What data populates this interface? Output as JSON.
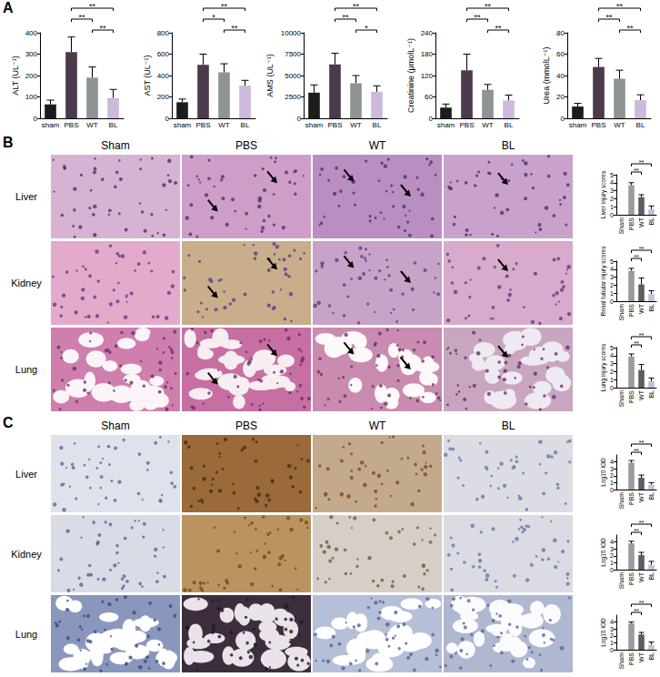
{
  "panel_labels": [
    "A",
    "B",
    "C"
  ],
  "image_panels": [
    {
      "columns": [
        "Sham",
        "PBS",
        "WT",
        "BL"
      ],
      "rows": [
        "Liver",
        "Kidney",
        "Lung"
      ]
    },
    {
      "columns": [
        "Sham",
        "PBS",
        "WT",
        "BL"
      ],
      "rows": [
        "Liver",
        "Kidney",
        "Lung"
      ]
    }
  ],
  "chart_data": [
    {
      "type": "bar",
      "ylabel": "ALT (UL⁻¹)",
      "categories": [
        "sham",
        "PBS",
        "WT",
        "BL"
      ],
      "values": [
        65,
        310,
        190,
        95
      ],
      "errors": [
        20,
        70,
        50,
        40
      ],
      "colors": [
        "#1c1c1c",
        "#4b3a4c",
        "#8e9494",
        "#cdb9dc"
      ],
      "ylim": [
        0,
        400
      ],
      "yticks": [
        0,
        100,
        200,
        300,
        400
      ],
      "grid": false,
      "significance": [
        {
          "from": "PBS",
          "to": "BL",
          "label": "**"
        },
        {
          "from": "PBS",
          "to": "WT",
          "label": "**"
        },
        {
          "from": "WT",
          "to": "BL",
          "label": "**"
        }
      ]
    },
    {
      "type": "bar",
      "ylabel": "AST (UL⁻¹)",
      "categories": [
        "sham",
        "PBS",
        "WT",
        "BL"
      ],
      "values": [
        150,
        500,
        430,
        305
      ],
      "errors": [
        30,
        100,
        80,
        50
      ],
      "colors": [
        "#1c1c1c",
        "#4b3a4c",
        "#8e9494",
        "#cdb9dc"
      ],
      "ylim": [
        0,
        800
      ],
      "yticks": [
        0,
        200,
        400,
        600,
        800
      ],
      "grid": false,
      "significance": [
        {
          "from": "PBS",
          "to": "BL",
          "label": "**"
        },
        {
          "from": "PBS",
          "to": "WT",
          "label": "*"
        },
        {
          "from": "WT",
          "to": "BL",
          "label": "**"
        }
      ]
    },
    {
      "type": "bar",
      "ylabel": "AMS (UL⁻¹)",
      "categories": [
        "sham",
        "PBS",
        "WT",
        "BL"
      ],
      "values": [
        3000,
        6300,
        4100,
        3100
      ],
      "errors": [
        900,
        1300,
        900,
        700
      ],
      "colors": [
        "#1c1c1c",
        "#4b3a4c",
        "#8e9494",
        "#cdb9dc"
      ],
      "ylim": [
        0,
        10000
      ],
      "yticks": [
        0,
        2500,
        5000,
        7500,
        10000
      ],
      "grid": false,
      "significance": [
        {
          "from": "PBS",
          "to": "BL",
          "label": "**"
        },
        {
          "from": "PBS",
          "to": "WT",
          "label": "**"
        },
        {
          "from": "WT",
          "to": "BL",
          "label": "*"
        }
      ]
    },
    {
      "type": "bar",
      "ylabel": "Creatinine (μmolL⁻¹)",
      "categories": [
        "sham",
        "PBS",
        "WT",
        "BL"
      ],
      "values": [
        30,
        135,
        80,
        50
      ],
      "errors": [
        10,
        45,
        15,
        15
      ],
      "colors": [
        "#1c1c1c",
        "#4b3a4c",
        "#8e9494",
        "#cdb9dc"
      ],
      "ylim": [
        0,
        240
      ],
      "yticks": [
        0,
        60,
        120,
        180,
        240
      ],
      "grid": false,
      "significance": [
        {
          "from": "PBS",
          "to": "BL",
          "label": "**"
        },
        {
          "from": "PBS",
          "to": "WT",
          "label": "**"
        },
        {
          "from": "WT",
          "to": "BL",
          "label": "**"
        }
      ]
    },
    {
      "type": "bar",
      "ylabel": "Urea (mmolL⁻¹)",
      "categories": [
        "sham",
        "PBS",
        "WT",
        "BL"
      ],
      "values": [
        11,
        48,
        37,
        17
      ],
      "errors": [
        3,
        8,
        8,
        5
      ],
      "colors": [
        "#1c1c1c",
        "#4b3a4c",
        "#8e9494",
        "#cdb9dc"
      ],
      "ylim": [
        0,
        80
      ],
      "yticks": [
        0,
        20,
        40,
        60,
        80
      ],
      "grid": false,
      "significance": [
        {
          "from": "PBS",
          "to": "BL",
          "label": "**"
        },
        {
          "from": "PBS",
          "to": "WT",
          "label": "**"
        },
        {
          "from": "WT",
          "to": "BL",
          "label": "**"
        }
      ]
    },
    {
      "type": "bar",
      "ylabel": "Liver injury scores",
      "categories": [
        "Sham",
        "PBS",
        "WT",
        "BL"
      ],
      "values": [
        0,
        3.7,
        2.2,
        0.7
      ],
      "errors": [
        0,
        0.3,
        0.3,
        0.4
      ],
      "colors": [
        "#9b9b9b",
        "#9b9b9b",
        "#5d5d5d",
        "#c9bddc"
      ],
      "ylim": [
        0,
        5
      ],
      "yticks": [
        0,
        1,
        2,
        3,
        4,
        5
      ],
      "grid": false,
      "significance": [
        {
          "from": "PBS",
          "to": "BL",
          "label": "**"
        },
        {
          "from": "PBS",
          "to": "WT",
          "label": "**"
        }
      ]
    },
    {
      "type": "bar",
      "ylabel": "Renal tubular injury scores",
      "categories": [
        "Sham",
        "PBS",
        "WT",
        "BL"
      ],
      "values": [
        0,
        3.8,
        2.1,
        0.9
      ],
      "errors": [
        0,
        0.3,
        0.8,
        0.4
      ],
      "colors": [
        "#9b9b9b",
        "#9b9b9b",
        "#5d5d5d",
        "#c9bddc"
      ],
      "ylim": [
        0,
        5
      ],
      "yticks": [
        0,
        1,
        2,
        3,
        4,
        5
      ],
      "grid": false,
      "significance": [
        {
          "from": "PBS",
          "to": "BL",
          "label": "**"
        },
        {
          "from": "PBS",
          "to": "WT",
          "label": "**"
        }
      ]
    },
    {
      "type": "bar",
      "ylabel": "Lung injury scores",
      "categories": [
        "Sham",
        "PBS",
        "WT",
        "BL"
      ],
      "values": [
        0,
        3.9,
        2.2,
        0.8
      ],
      "errors": [
        0,
        0.3,
        0.7,
        0.4
      ],
      "colors": [
        "#9b9b9b",
        "#9b9b9b",
        "#5d5d5d",
        "#c9bddc"
      ],
      "ylim": [
        0,
        5
      ],
      "yticks": [
        0,
        1,
        2,
        3,
        4,
        5
      ],
      "grid": false,
      "significance": [
        {
          "from": "PBS",
          "to": "BL",
          "label": "**"
        },
        {
          "from": "PBS",
          "to": "WT",
          "label": "**"
        }
      ]
    },
    {
      "type": "bar",
      "ylabel": "Log10 IOD",
      "categories": [
        "Sham",
        "PBS",
        "WT",
        "BL"
      ],
      "values": [
        0,
        3.9,
        1.7,
        0.7
      ],
      "errors": [
        0,
        0.3,
        0.4,
        0.3
      ],
      "colors": [
        "#9b9b9b",
        "#9b9b9b",
        "#5d5d5d",
        "#c9bddc"
      ],
      "ylim": [
        0,
        5
      ],
      "yticks": [
        0,
        1,
        2,
        3,
        4
      ],
      "grid": false,
      "significance": [
        {
          "from": "PBS",
          "to": "BL",
          "label": "**"
        },
        {
          "from": "PBS",
          "to": "WT",
          "label": "**"
        }
      ]
    },
    {
      "type": "bar",
      "ylabel": "Log10 IOD",
      "categories": [
        "Sham",
        "PBS",
        "WT",
        "BL"
      ],
      "values": [
        0,
        3.8,
        2.1,
        0.7
      ],
      "errors": [
        0,
        0.3,
        0.4,
        0.5
      ],
      "colors": [
        "#9b9b9b",
        "#9b9b9b",
        "#5d5d5d",
        "#c9bddc"
      ],
      "ylim": [
        0,
        5
      ],
      "yticks": [
        0,
        1,
        2,
        3,
        4
      ],
      "grid": false,
      "significance": [
        {
          "from": "PBS",
          "to": "BL",
          "label": "**"
        },
        {
          "from": "PBS",
          "to": "WT",
          "label": "**"
        }
      ]
    },
    {
      "type": "bar",
      "ylabel": "Log10 IOD",
      "categories": [
        "Sham",
        "PBS",
        "WT",
        "BL"
      ],
      "values": [
        0,
        3.8,
        2.2,
        0.7
      ],
      "errors": [
        0,
        0.2,
        0.3,
        0.4
      ],
      "colors": [
        "#9b9b9b",
        "#9b9b9b",
        "#5d5d5d",
        "#c9bddc"
      ],
      "ylim": [
        0,
        5
      ],
      "yticks": [
        0,
        1,
        2,
        3,
        4
      ],
      "grid": false,
      "significance": [
        {
          "from": "PBS",
          "to": "BL",
          "label": "**"
        },
        {
          "from": "PBS",
          "to": "WT",
          "label": "**"
        }
      ]
    }
  ]
}
